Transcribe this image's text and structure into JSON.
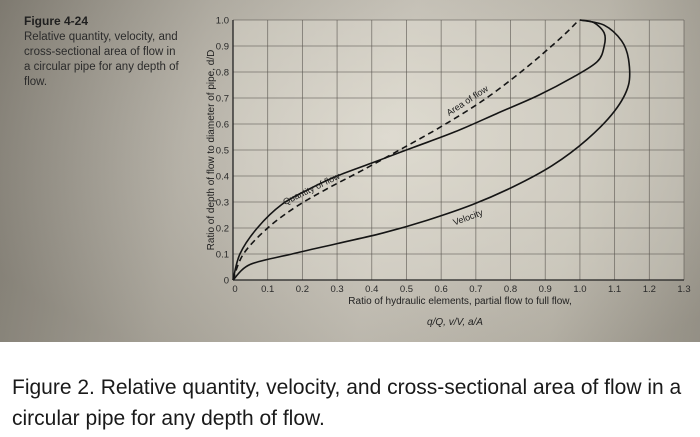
{
  "figure": {
    "number": "Figure 4-24",
    "description": "Relative quantity, velocity, and cross-sectional area of flow in a circular pipe for any depth of flow."
  },
  "caption": "Figure 2. Relative quantity, velocity, and cross-sectional area of flow in a circular pipe for any depth of flow.",
  "formula": "q/Q, v/V, a/A",
  "chart_data": {
    "type": "line",
    "xlabel": "Ratio of hydraulic elements, partial flow to full flow,",
    "ylabel": "Ratio of depth of flow to diameter of pipe, d/D",
    "x_ticks": [
      "0",
      "0.1",
      "0.2",
      "0.3",
      "0.4",
      "0.5",
      "0.6",
      "0.7",
      "0.8",
      "0.9",
      "1.0",
      "1.1",
      "1.2",
      "1.3"
    ],
    "y_ticks": [
      "0",
      "0.1",
      "0.2",
      "0.3",
      "0.4",
      "0.5",
      "0.6",
      "0.7",
      "0.8",
      "0.9",
      "1.0"
    ],
    "xlim": [
      0,
      1.3
    ],
    "ylim": [
      0,
      1.0
    ],
    "grid": true,
    "series": [
      {
        "name": "Quantity of flow",
        "style": "solid",
        "x": [
          0,
          0.02,
          0.07,
          0.14,
          0.22,
          0.3,
          0.4,
          0.52,
          0.64,
          0.76,
          0.88,
          0.98,
          1.05,
          1.07,
          1.07,
          1.04,
          1.0
        ],
        "y": [
          0,
          0.1,
          0.2,
          0.29,
          0.35,
          0.4,
          0.45,
          0.51,
          0.57,
          0.64,
          0.71,
          0.78,
          0.84,
          0.9,
          0.95,
          0.99,
          1.0
        ]
      },
      {
        "name": "Area of flow",
        "style": "dashed",
        "x": [
          0,
          0.03,
          0.1,
          0.18,
          0.27,
          0.37,
          0.48,
          0.6,
          0.72,
          0.83,
          0.91,
          0.96,
          0.99,
          1.0
        ],
        "y": [
          0,
          0.1,
          0.2,
          0.28,
          0.35,
          0.42,
          0.5,
          0.59,
          0.69,
          0.8,
          0.89,
          0.95,
          0.99,
          1.0
        ]
      },
      {
        "name": "Velocity",
        "style": "solid",
        "x": [
          0,
          0.05,
          0.17,
          0.3,
          0.43,
          0.56,
          0.69,
          0.81,
          0.92,
          1.02,
          1.1,
          1.14,
          1.14,
          1.12,
          1.07,
          1.0
        ],
        "y": [
          0,
          0.06,
          0.1,
          0.14,
          0.18,
          0.23,
          0.29,
          0.36,
          0.44,
          0.54,
          0.65,
          0.75,
          0.85,
          0.92,
          0.98,
          1.0
        ]
      }
    ]
  }
}
